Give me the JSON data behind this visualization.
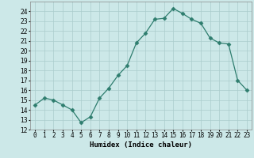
{
  "x": [
    0,
    1,
    2,
    3,
    4,
    5,
    6,
    7,
    8,
    9,
    10,
    11,
    12,
    13,
    14,
    15,
    16,
    17,
    18,
    19,
    20,
    21,
    22,
    23
  ],
  "y": [
    14.5,
    15.2,
    15.0,
    14.5,
    14.0,
    12.7,
    13.3,
    15.2,
    16.2,
    17.5,
    18.5,
    20.8,
    21.8,
    23.2,
    23.3,
    24.3,
    23.8,
    23.2,
    22.8,
    21.3,
    20.8,
    20.7,
    17.0,
    16.0
  ],
  "line_color": "#2e7d6e",
  "marker": "D",
  "marker_size": 2.5,
  "bg_color": "#cce8e8",
  "grid_color": "#aacccc",
  "xlabel": "Humidex (Indice chaleur)",
  "ylim": [
    12,
    25
  ],
  "xlim": [
    -0.5,
    23.5
  ],
  "yticks": [
    12,
    13,
    14,
    15,
    16,
    17,
    18,
    19,
    20,
    21,
    22,
    23,
    24
  ],
  "xticks": [
    0,
    1,
    2,
    3,
    4,
    5,
    6,
    7,
    8,
    9,
    10,
    11,
    12,
    13,
    14,
    15,
    16,
    17,
    18,
    19,
    20,
    21,
    22,
    23
  ],
  "xtick_labels": [
    "0",
    "1",
    "2",
    "3",
    "4",
    "5",
    "6",
    "7",
    "8",
    "9",
    "10",
    "11",
    "12",
    "13",
    "14",
    "15",
    "16",
    "17",
    "18",
    "19",
    "20",
    "21",
    "22",
    "23"
  ],
  "label_fontsize": 6.5,
  "tick_fontsize": 5.5
}
